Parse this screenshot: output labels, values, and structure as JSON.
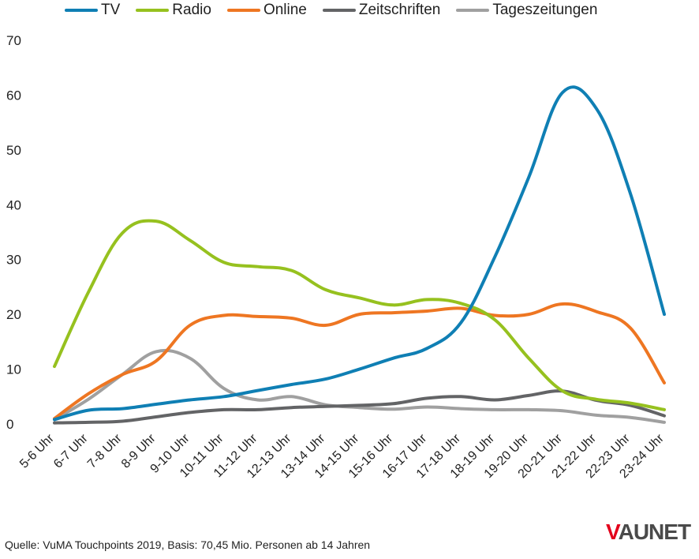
{
  "legend": [
    {
      "label": "TV",
      "color": "#0f7fb4"
    },
    {
      "label": "Radio",
      "color": "#96c11f"
    },
    {
      "label": "Online",
      "color": "#ee7622"
    },
    {
      "label": "Zeitschriften",
      "color": "#636466"
    },
    {
      "label": "Tageszeitungen",
      "color": "#a0a0a0"
    }
  ],
  "chart_data": {
    "type": "line",
    "title": "",
    "xlabel": "",
    "ylabel": "",
    "ylim": [
      0,
      70
    ],
    "yticks": [
      0,
      10,
      20,
      30,
      40,
      50,
      60,
      70
    ],
    "grid": false,
    "legend_position": "top",
    "categories": [
      "5-6 Uhr",
      "6-7 Uhr",
      "7-8 Uhr",
      "8-9 Uhr",
      "9-10 Uhr",
      "10-11 Uhr",
      "11-12 Uhr",
      "12-13 Uhr",
      "13-14 Uhr",
      "14-15 Uhr",
      "15-16 Uhr",
      "16-17 Uhr",
      "17-18 Uhr",
      "18-19 Uhr",
      "19-20 Uhr",
      "20-21 Uhr",
      "21-22 Uhr",
      "22-23 Uhr",
      "23-24 Uhr"
    ],
    "series": [
      {
        "name": "TV",
        "color": "#0f7fb4",
        "values": [
          0.8,
          2.5,
          2.8,
          3.6,
          4.4,
          5.0,
          6.1,
          7.2,
          8.2,
          10.0,
          12.0,
          13.8,
          18.5,
          30.5,
          45.0,
          60.5,
          57.5,
          42.0,
          20.0
        ]
      },
      {
        "name": "Radio",
        "color": "#96c11f",
        "values": [
          10.5,
          24.0,
          34.8,
          37.0,
          33.5,
          29.5,
          28.7,
          28.0,
          24.5,
          23.0,
          21.7,
          22.7,
          22.0,
          19.0,
          12.0,
          6.0,
          4.5,
          3.8,
          2.6
        ]
      },
      {
        "name": "Online",
        "color": "#ee7622",
        "values": [
          1.0,
          5.5,
          9.0,
          11.5,
          18.0,
          19.8,
          19.6,
          19.3,
          18.0,
          20.0,
          20.3,
          20.6,
          21.1,
          19.8,
          20.0,
          21.9,
          20.5,
          17.5,
          7.5
        ]
      },
      {
        "name": "Zeitschriften",
        "color": "#636466",
        "values": [
          0.2,
          0.3,
          0.5,
          1.3,
          2.1,
          2.6,
          2.6,
          3.0,
          3.2,
          3.4,
          3.7,
          4.7,
          5.0,
          4.4,
          5.2,
          6.0,
          4.3,
          3.4,
          1.5
        ]
      },
      {
        "name": "Tageszeitungen",
        "color": "#a0a0a0",
        "values": [
          0.8,
          4.5,
          9.0,
          13.2,
          12.0,
          6.5,
          4.4,
          5.0,
          3.5,
          3.0,
          2.7,
          3.1,
          2.8,
          2.6,
          2.6,
          2.4,
          1.6,
          1.2,
          0.3
        ]
      }
    ]
  },
  "footer": {
    "source": "Quelle: VuMA Touchpoints 2019, Basis: 70,45 Mio. Personen ab 14 Jahren",
    "logo_v": "V",
    "logo_rest": "AUNET"
  }
}
